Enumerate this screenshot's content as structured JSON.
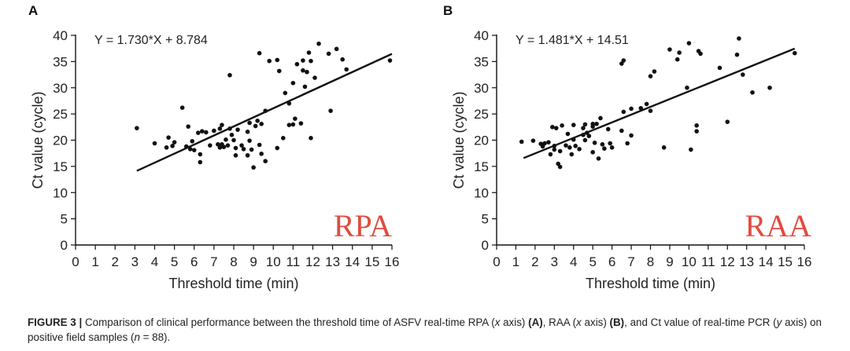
{
  "figure": {
    "panel_a_label": "A",
    "panel_b_label": "B",
    "caption": {
      "figure_label": "FIGURE 3 |",
      "text_1": " Comparison of clinical performance between the threshold time of ASFV real-time RPA (",
      "x1": "x",
      "text_2": " axis) ",
      "ref_a": "(A)",
      "text_3": ", RAA (",
      "x2": "x",
      "text_4": " axis) ",
      "ref_b": "(B)",
      "text_5": ", and Ct value of real-time PCR (",
      "y1": "y",
      "text_6": " axis) on positive field samples (",
      "n": "n",
      "text_7": " = 88)."
    }
  },
  "chart_data": [
    {
      "type": "scatter",
      "panel": "A",
      "xlabel": "Threshold time (min)",
      "ylabel": "Ct value (cycle)",
      "xlim": [
        0,
        16
      ],
      "ylim": [
        0,
        40
      ],
      "xticks": [
        0,
        1,
        2,
        3,
        4,
        5,
        6,
        7,
        8,
        9,
        10,
        11,
        12,
        13,
        14,
        15,
        16
      ],
      "yticks": [
        0,
        5,
        10,
        15,
        20,
        25,
        30,
        35,
        40
      ],
      "equation": "Y = 1.730*X + 8.784",
      "label": "RPA",
      "label_color": "#e04b3f",
      "regression": {
        "slope": 1.73,
        "intercept": 8.784,
        "x_range": [
          3.1,
          16.0
        ]
      },
      "points": [
        [
          3.1,
          22.3
        ],
        [
          4.0,
          19.4
        ],
        [
          4.6,
          18.6
        ],
        [
          4.7,
          20.5
        ],
        [
          4.9,
          18.9
        ],
        [
          5.0,
          19.6
        ],
        [
          5.4,
          26.2
        ],
        [
          5.6,
          18.8
        ],
        [
          5.7,
          22.6
        ],
        [
          5.8,
          18.3
        ],
        [
          5.9,
          19.8
        ],
        [
          6.0,
          18.1
        ],
        [
          6.2,
          21.4
        ],
        [
          6.3,
          15.8
        ],
        [
          6.3,
          17.3
        ],
        [
          6.4,
          21.7
        ],
        [
          6.6,
          21.5
        ],
        [
          6.8,
          19.0
        ],
        [
          7.0,
          21.8
        ],
        [
          7.2,
          19.2
        ],
        [
          7.3,
          18.6
        ],
        [
          7.3,
          22.2
        ],
        [
          7.4,
          19.2
        ],
        [
          7.4,
          22.9
        ],
        [
          7.5,
          18.7
        ],
        [
          7.6,
          20.1
        ],
        [
          7.7,
          19.0
        ],
        [
          7.8,
          32.4
        ],
        [
          7.8,
          22.2
        ],
        [
          7.9,
          21.0
        ],
        [
          8.0,
          20.0
        ],
        [
          8.1,
          18.5
        ],
        [
          8.1,
          17.1
        ],
        [
          8.2,
          22.0
        ],
        [
          8.4,
          19.0
        ],
        [
          8.5,
          18.3
        ],
        [
          8.7,
          21.6
        ],
        [
          8.7,
          17.1
        ],
        [
          8.8,
          23.3
        ],
        [
          8.8,
          19.9
        ],
        [
          8.9,
          18.2
        ],
        [
          9.0,
          14.8
        ],
        [
          9.1,
          22.7
        ],
        [
          9.2,
          23.7
        ],
        [
          9.3,
          19.1
        ],
        [
          9.3,
          36.6
        ],
        [
          9.4,
          23.1
        ],
        [
          9.4,
          17.4
        ],
        [
          9.6,
          25.6
        ],
        [
          9.6,
          16.0
        ],
        [
          9.8,
          35.1
        ],
        [
          10.2,
          35.3
        ],
        [
          10.2,
          18.5
        ],
        [
          10.3,
          33.2
        ],
        [
          10.5,
          20.4
        ],
        [
          10.6,
          29.0
        ],
        [
          10.8,
          27.0
        ],
        [
          10.8,
          22.9
        ],
        [
          11.0,
          23.0
        ],
        [
          11.0,
          30.9
        ],
        [
          11.1,
          24.1
        ],
        [
          11.2,
          34.5
        ],
        [
          11.4,
          23.2
        ],
        [
          11.5,
          35.2
        ],
        [
          11.5,
          33.3
        ],
        [
          11.6,
          30.2
        ],
        [
          11.7,
          33.0
        ],
        [
          11.8,
          36.7
        ],
        [
          11.9,
          35.1
        ],
        [
          11.9,
          20.4
        ],
        [
          12.1,
          31.9
        ],
        [
          12.3,
          38.4
        ],
        [
          12.8,
          36.5
        ],
        [
          12.9,
          25.6
        ],
        [
          13.2,
          37.4
        ],
        [
          13.5,
          35.4
        ],
        [
          13.7,
          33.5
        ],
        [
          15.9,
          35.2
        ]
      ]
    },
    {
      "type": "scatter",
      "panel": "B",
      "xlabel": "Threshold time (min)",
      "ylabel": "Ct value (cycle)",
      "xlim": [
        0,
        16
      ],
      "ylim": [
        0,
        40
      ],
      "xticks": [
        0,
        1,
        2,
        3,
        4,
        5,
        6,
        7,
        8,
        9,
        10,
        11,
        12,
        13,
        14,
        15,
        16
      ],
      "yticks": [
        0,
        5,
        10,
        15,
        20,
        25,
        30,
        35,
        40
      ],
      "equation": "Y = 1.481*X + 14.51",
      "label": "RAA",
      "label_color": "#e04b3f",
      "regression": {
        "slope": 1.481,
        "intercept": 14.51,
        "x_range": [
          1.4,
          15.5
        ]
      },
      "points": [
        [
          1.3,
          19.7
        ],
        [
          1.9,
          19.9
        ],
        [
          2.3,
          19.3
        ],
        [
          2.4,
          18.8
        ],
        [
          2.5,
          19.4
        ],
        [
          2.7,
          19.6
        ],
        [
          2.8,
          17.3
        ],
        [
          2.9,
          22.5
        ],
        [
          3.0,
          18.9
        ],
        [
          3.0,
          18.2
        ],
        [
          3.1,
          22.3
        ],
        [
          3.2,
          15.5
        ],
        [
          3.3,
          17.9
        ],
        [
          3.3,
          14.9
        ],
        [
          3.4,
          22.8
        ],
        [
          3.6,
          19.0
        ],
        [
          3.7,
          21.2
        ],
        [
          3.8,
          18.6
        ],
        [
          3.9,
          17.3
        ],
        [
          4.0,
          20.1
        ],
        [
          4.0,
          22.9
        ],
        [
          4.1,
          18.9
        ],
        [
          4.3,
          18.3
        ],
        [
          4.5,
          22.3
        ],
        [
          4.5,
          21.0
        ],
        [
          4.6,
          23.0
        ],
        [
          4.6,
          20.0
        ],
        [
          4.7,
          21.4
        ],
        [
          4.8,
          20.8
        ],
        [
          5.0,
          22.6
        ],
        [
          5.0,
          23.1
        ],
        [
          5.0,
          17.7
        ],
        [
          5.1,
          19.5
        ],
        [
          5.2,
          23.1
        ],
        [
          5.3,
          16.5
        ],
        [
          5.4,
          24.2
        ],
        [
          5.5,
          19.2
        ],
        [
          5.6,
          18.4
        ],
        [
          5.8,
          22.1
        ],
        [
          5.9,
          19.4
        ],
        [
          6.0,
          18.6
        ],
        [
          6.5,
          34.6
        ],
        [
          6.5,
          21.8
        ],
        [
          6.6,
          35.2
        ],
        [
          6.6,
          25.4
        ],
        [
          6.8,
          19.4
        ],
        [
          7.0,
          26.0
        ],
        [
          7.0,
          20.9
        ],
        [
          7.5,
          26.1
        ],
        [
          7.8,
          26.9
        ],
        [
          8.0,
          32.2
        ],
        [
          8.0,
          25.6
        ],
        [
          8.2,
          33.1
        ],
        [
          8.7,
          18.6
        ],
        [
          9.0,
          37.3
        ],
        [
          9.4,
          35.4
        ],
        [
          9.5,
          36.7
        ],
        [
          9.9,
          30.0
        ],
        [
          10.0,
          38.5
        ],
        [
          10.1,
          18.2
        ],
        [
          10.4,
          22.8
        ],
        [
          10.4,
          21.7
        ],
        [
          10.5,
          37.0
        ],
        [
          10.6,
          36.5
        ],
        [
          11.6,
          33.8
        ],
        [
          12.0,
          23.5
        ],
        [
          12.5,
          36.3
        ],
        [
          12.6,
          39.4
        ],
        [
          12.8,
          32.5
        ],
        [
          13.3,
          29.1
        ],
        [
          14.2,
          30.0
        ],
        [
          15.5,
          36.6
        ]
      ]
    }
  ]
}
